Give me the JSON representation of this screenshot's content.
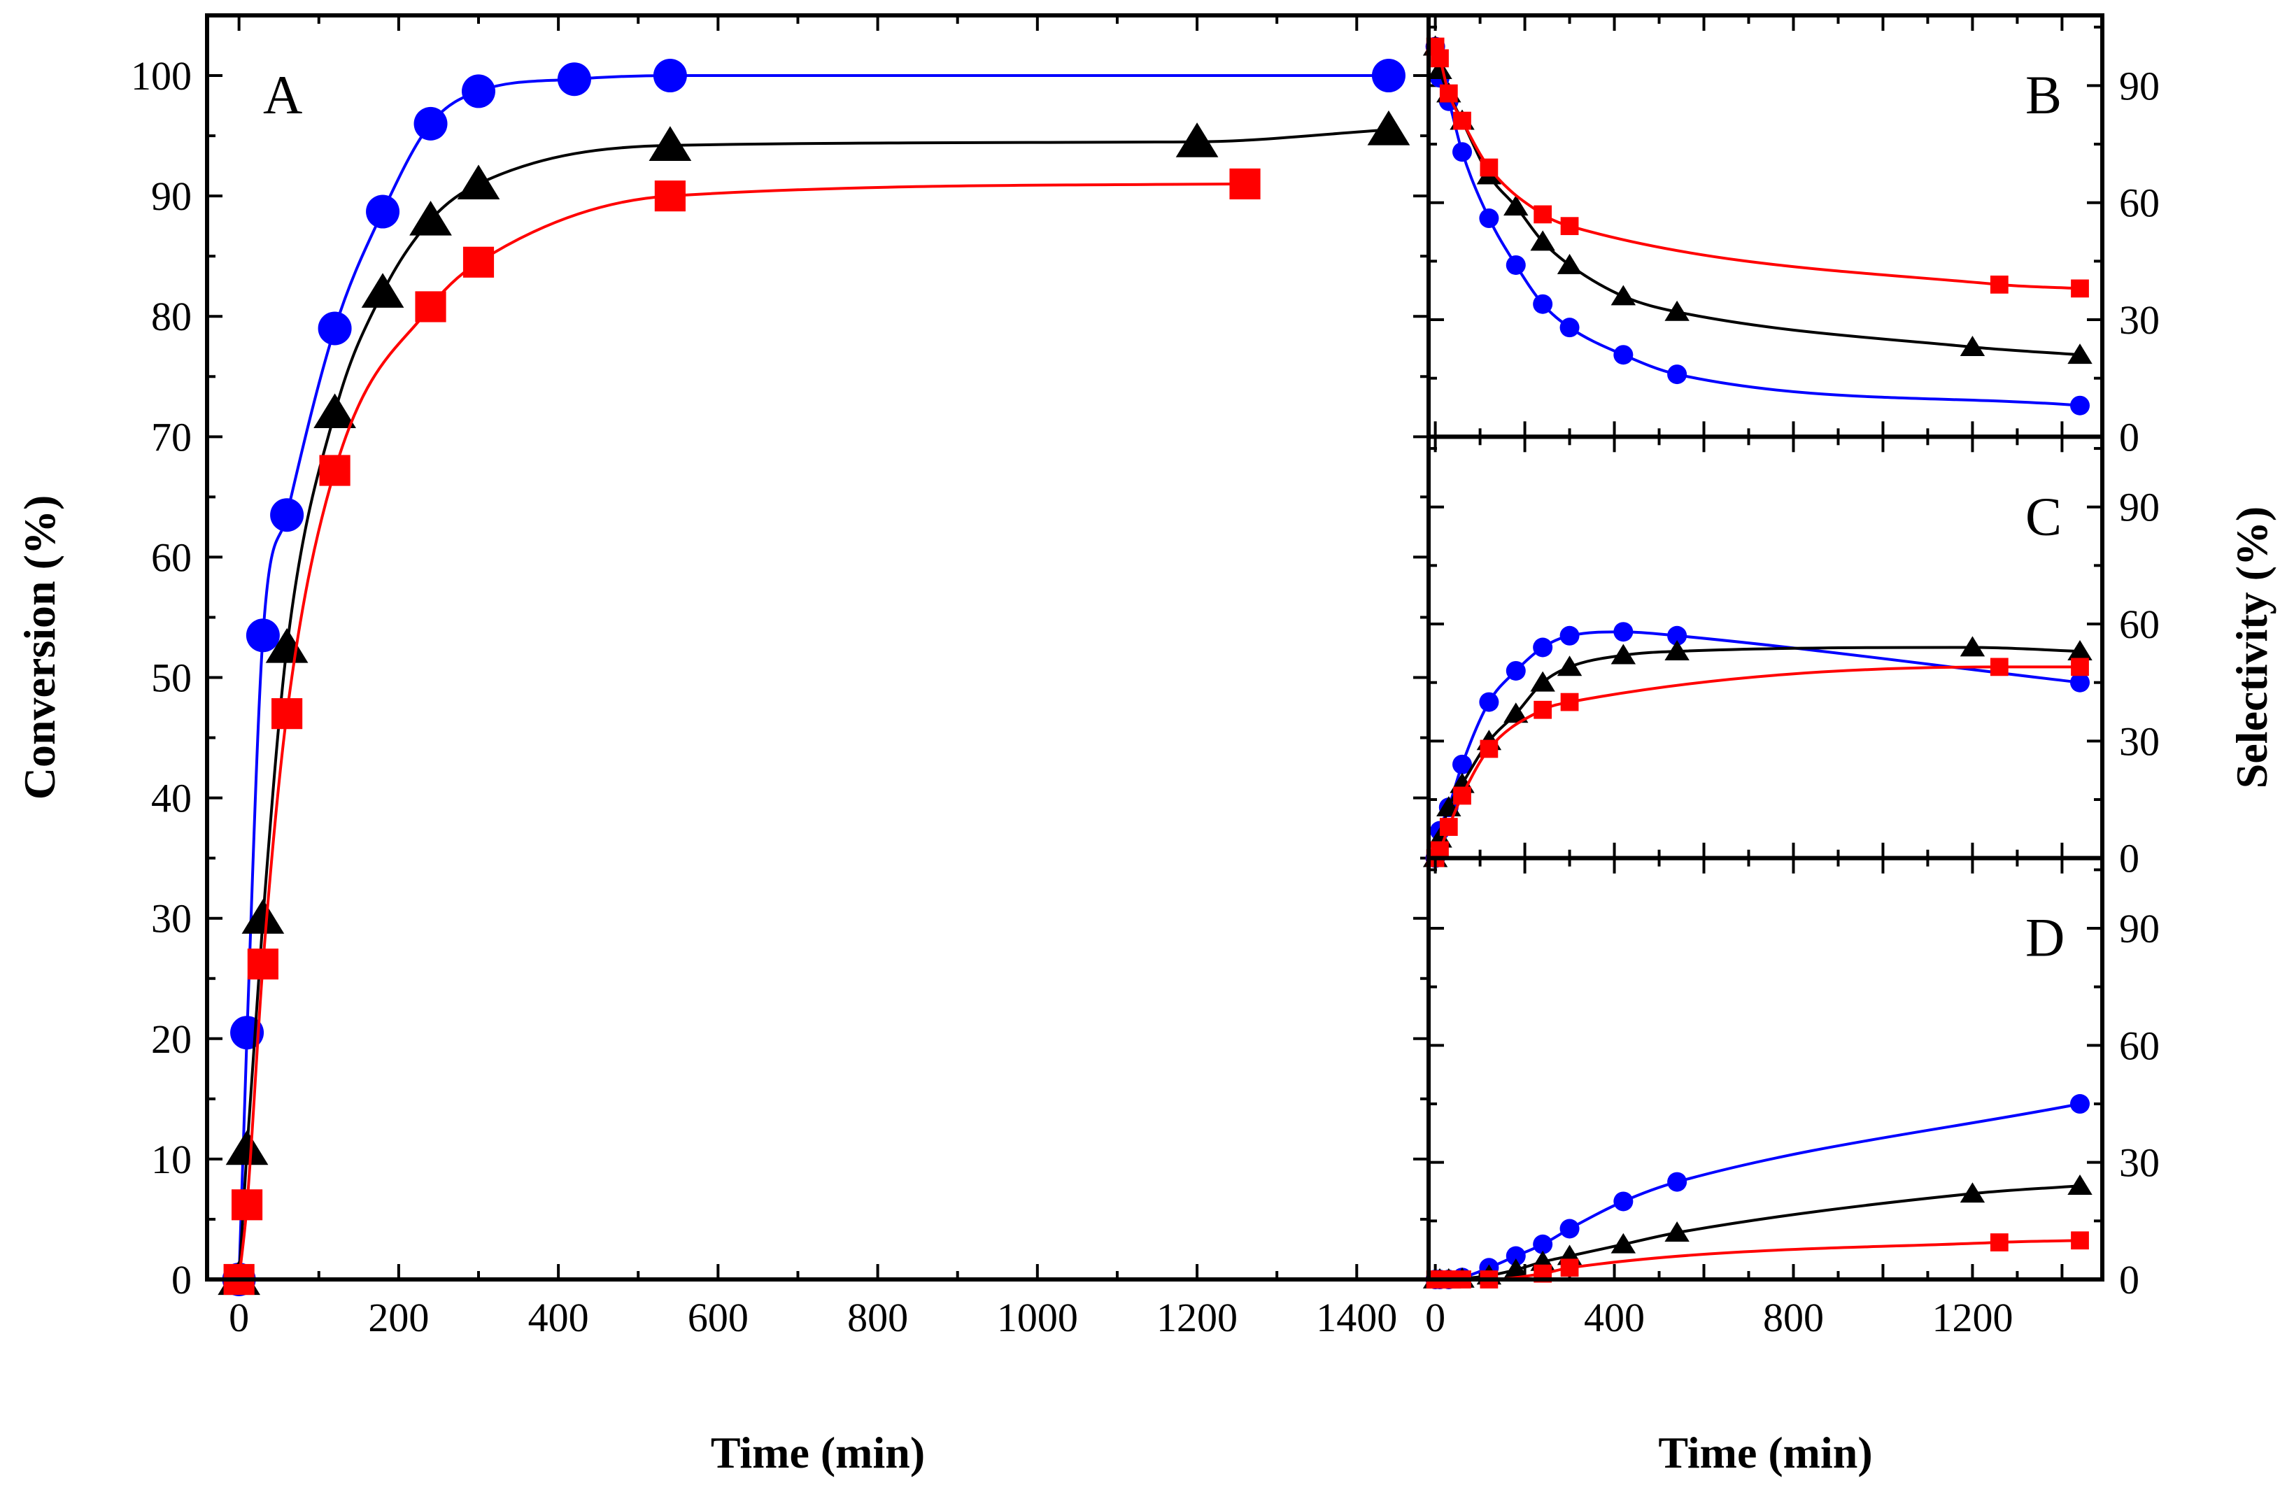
{
  "chart_data": [
    {
      "panel": "A",
      "type": "scatter",
      "panel_label": "A",
      "xlabel": "Time (min)",
      "ylabel": "Conversion (%)",
      "xlim": [
        -40,
        1490
      ],
      "ylim": [
        0,
        105
      ],
      "xticks": [
        0,
        200,
        400,
        600,
        800,
        1000,
        1200,
        1400
      ],
      "yticks": [
        0,
        10,
        20,
        30,
        40,
        50,
        60,
        70,
        80,
        90,
        100
      ],
      "grid": false,
      "series": [
        {
          "marker": "circle",
          "color": "#0000ff",
          "x": [
            0,
            10,
            30,
            60,
            120,
            180,
            240,
            300,
            420,
            540,
            1440
          ],
          "y": [
            0,
            20.5,
            53.5,
            63.5,
            79,
            88.7,
            96,
            98.7,
            99.7,
            100,
            100
          ]
        },
        {
          "marker": "triangle",
          "color": "#000000",
          "x": [
            0,
            10,
            30,
            60,
            120,
            180,
            240,
            300,
            540,
            1200,
            1440
          ],
          "y": [
            0,
            10.8,
            30,
            52.5,
            72,
            82,
            88,
            91,
            94.2,
            94.5,
            95.5
          ]
        },
        {
          "marker": "square",
          "color": "#ff0000",
          "x": [
            0,
            10,
            30,
            60,
            120,
            240,
            300,
            540,
            1260
          ],
          "y": [
            0,
            6.2,
            26.2,
            47,
            67.2,
            80.8,
            84.5,
            90,
            91
          ]
        }
      ]
    },
    {
      "panel": "B",
      "type": "scatter",
      "panel_label": "B",
      "xlim": [
        -15,
        1490
      ],
      "ylim": [
        0,
        108
      ],
      "yticks": [
        0,
        30,
        60,
        90
      ],
      "series": [
        {
          "marker": "circle",
          "color": "#0000ff",
          "x": [
            0,
            10,
            30,
            60,
            120,
            180,
            240,
            300,
            420,
            540,
            1440
          ],
          "y": [
            100,
            92,
            86,
            73,
            56,
            44,
            34,
            28,
            21,
            16,
            8
          ]
        },
        {
          "marker": "triangle",
          "color": "#000000",
          "x": [
            0,
            10,
            30,
            60,
            120,
            180,
            240,
            300,
            420,
            540,
            1200,
            1440
          ],
          "y": [
            100,
            94,
            88,
            81,
            67,
            59,
            50,
            44,
            36,
            32,
            23,
            21
          ]
        },
        {
          "marker": "square",
          "color": "#ff0000",
          "x": [
            0,
            10,
            30,
            60,
            120,
            240,
            300,
            1260,
            1440
          ],
          "y": [
            100,
            97,
            88,
            81,
            69,
            57,
            54,
            39,
            38
          ]
        }
      ]
    },
    {
      "panel": "C",
      "type": "scatter",
      "panel_label": "C",
      "ylabel": "Selectivity (%)",
      "xlim": [
        -15,
        1490
      ],
      "ylim": [
        0,
        108
      ],
      "yticks": [
        0,
        30,
        60,
        90
      ],
      "series": [
        {
          "marker": "circle",
          "color": "#0000ff",
          "x": [
            0,
            10,
            30,
            60,
            120,
            180,
            240,
            300,
            420,
            540,
            1440
          ],
          "y": [
            0,
            7,
            13,
            24,
            40,
            48,
            54,
            57,
            58,
            57,
            45
          ]
        },
        {
          "marker": "triangle",
          "color": "#000000",
          "x": [
            0,
            10,
            30,
            60,
            120,
            180,
            240,
            300,
            420,
            540,
            1200,
            1440
          ],
          "y": [
            0,
            5,
            13,
            19,
            30,
            37,
            45,
            49,
            52,
            53,
            54,
            53
          ]
        },
        {
          "marker": "square",
          "color": "#ff0000",
          "x": [
            0,
            10,
            30,
            60,
            120,
            240,
            300,
            1260,
            1440
          ],
          "y": [
            0,
            2,
            8,
            16,
            28,
            38,
            40,
            49,
            49
          ]
        }
      ]
    },
    {
      "panel": "D",
      "type": "scatter",
      "panel_label": "D",
      "xlabel": "Time (min)",
      "xlim": [
        -15,
        1490
      ],
      "ylim": [
        0,
        108
      ],
      "xticks": [
        0,
        400,
        800,
        1200
      ],
      "yticks": [
        0,
        30,
        60,
        90
      ],
      "series": [
        {
          "marker": "circle",
          "color": "#0000ff",
          "x": [
            0,
            10,
            30,
            60,
            120,
            180,
            240,
            300,
            420,
            540,
            1440
          ],
          "y": [
            0,
            0,
            0,
            0.5,
            3,
            6,
            9,
            13,
            20,
            25,
            45
          ]
        },
        {
          "marker": "triangle",
          "color": "#000000",
          "x": [
            0,
            10,
            30,
            60,
            120,
            180,
            240,
            300,
            420,
            540,
            1200,
            1440
          ],
          "y": [
            0,
            0,
            0,
            0.2,
            1,
            2.5,
            4.5,
            6,
            9,
            12,
            22,
            24
          ]
        },
        {
          "marker": "square",
          "color": "#ff0000",
          "x": [
            0,
            10,
            30,
            60,
            120,
            240,
            300,
            1260,
            1440
          ],
          "y": [
            0,
            0,
            0,
            0,
            0,
            1.5,
            3,
            9.5,
            10
          ]
        }
      ]
    }
  ]
}
